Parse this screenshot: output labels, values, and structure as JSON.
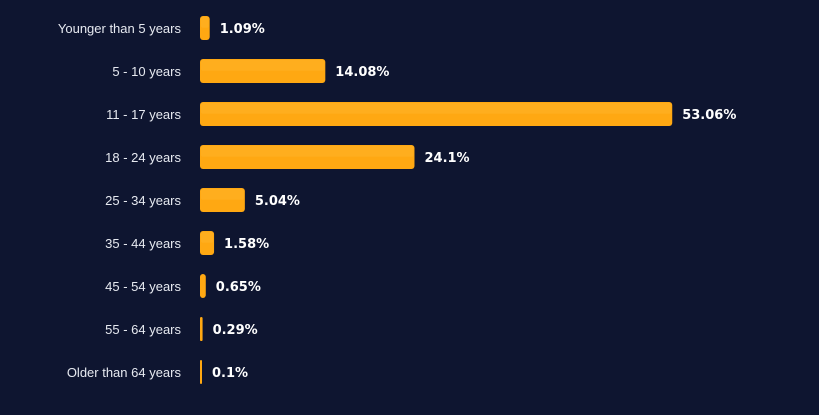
{
  "colors": {
    "background": "#0e1530",
    "bar": "#ffa812",
    "bar_highlight": "#ffb52e",
    "category_text": "#e6e9f0",
    "value_text": "#ffffff"
  },
  "chart_data": {
    "type": "bar",
    "orientation": "horizontal",
    "categories": [
      "Younger than 5 years",
      "5 - 10 years",
      "11 - 17 years",
      "18 - 24 years",
      "25 - 34 years",
      "35 - 44 years",
      "45 - 54 years",
      "55 - 64 years",
      "Older than 64 years"
    ],
    "values": [
      1.09,
      14.08,
      53.06,
      24.1,
      5.04,
      1.58,
      0.65,
      0.29,
      0.1
    ],
    "value_labels": [
      "1.09%",
      "14.08%",
      "53.06%",
      "24.1%",
      "5.04%",
      "1.58%",
      "0.65%",
      "0.29%",
      "0.1%"
    ],
    "xlim": [
      0,
      60
    ],
    "grid": false,
    "legend": "none"
  }
}
